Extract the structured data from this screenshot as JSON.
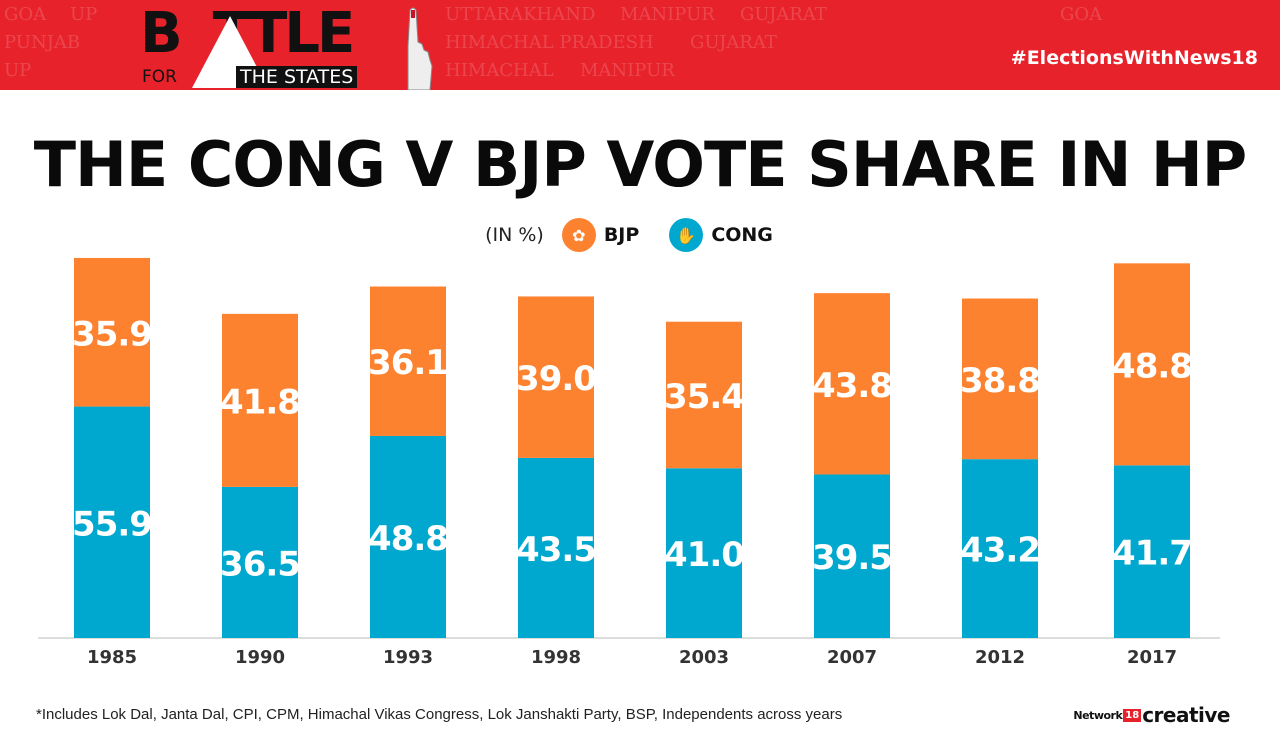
{
  "header": {
    "logo_text": "BATTLE FOR THE STATES",
    "hashtag": "#ElectionsWithNews18",
    "background_words": [
      "UTTARAKHAND",
      "MANIPUR",
      "GOA",
      "GUJARAT",
      "PUNJAB",
      "UP",
      "HIMACHAL PRADESH",
      "GUJARAT",
      "UP",
      "HIMACHAL",
      "MANIPUR",
      "GOA"
    ]
  },
  "chart_data": {
    "type": "bar",
    "stacked": true,
    "title": "THE CONG V BJP VOTE SHARE IN HP",
    "unit_label": "(IN %)",
    "categories": [
      "1985",
      "1990",
      "1993",
      "1998",
      "2003",
      "2007",
      "2012",
      "2017"
    ],
    "series": [
      {
        "name": "CONG",
        "color": "#00a8cf",
        "values": [
          55.9,
          36.5,
          48.8,
          43.5,
          41.0,
          39.5,
          43.2,
          41.7
        ]
      },
      {
        "name": "BJP",
        "color": "#fd8230",
        "values": [
          35.9,
          41.8,
          36.1,
          39.0,
          35.4,
          43.8,
          38.8,
          48.8
        ]
      }
    ],
    "legend_placement": "top-center",
    "grid": false
  },
  "legend": {
    "unit": "(IN %)",
    "items": [
      {
        "label": "BJP",
        "icon": "lotus-icon",
        "color": "#fd8230"
      },
      {
        "label": "CONG",
        "icon": "hand-icon",
        "color": "#00a8cf"
      }
    ]
  },
  "footer": {
    "footnote": "*Includes Lok Dal, Janta Dal, CPI, CPM, Himachal Vikas Congress, Lok Janshakti Party, BSP, Independents across years",
    "credit_network": "Network",
    "credit_number": "18",
    "credit_creative": "creative"
  }
}
